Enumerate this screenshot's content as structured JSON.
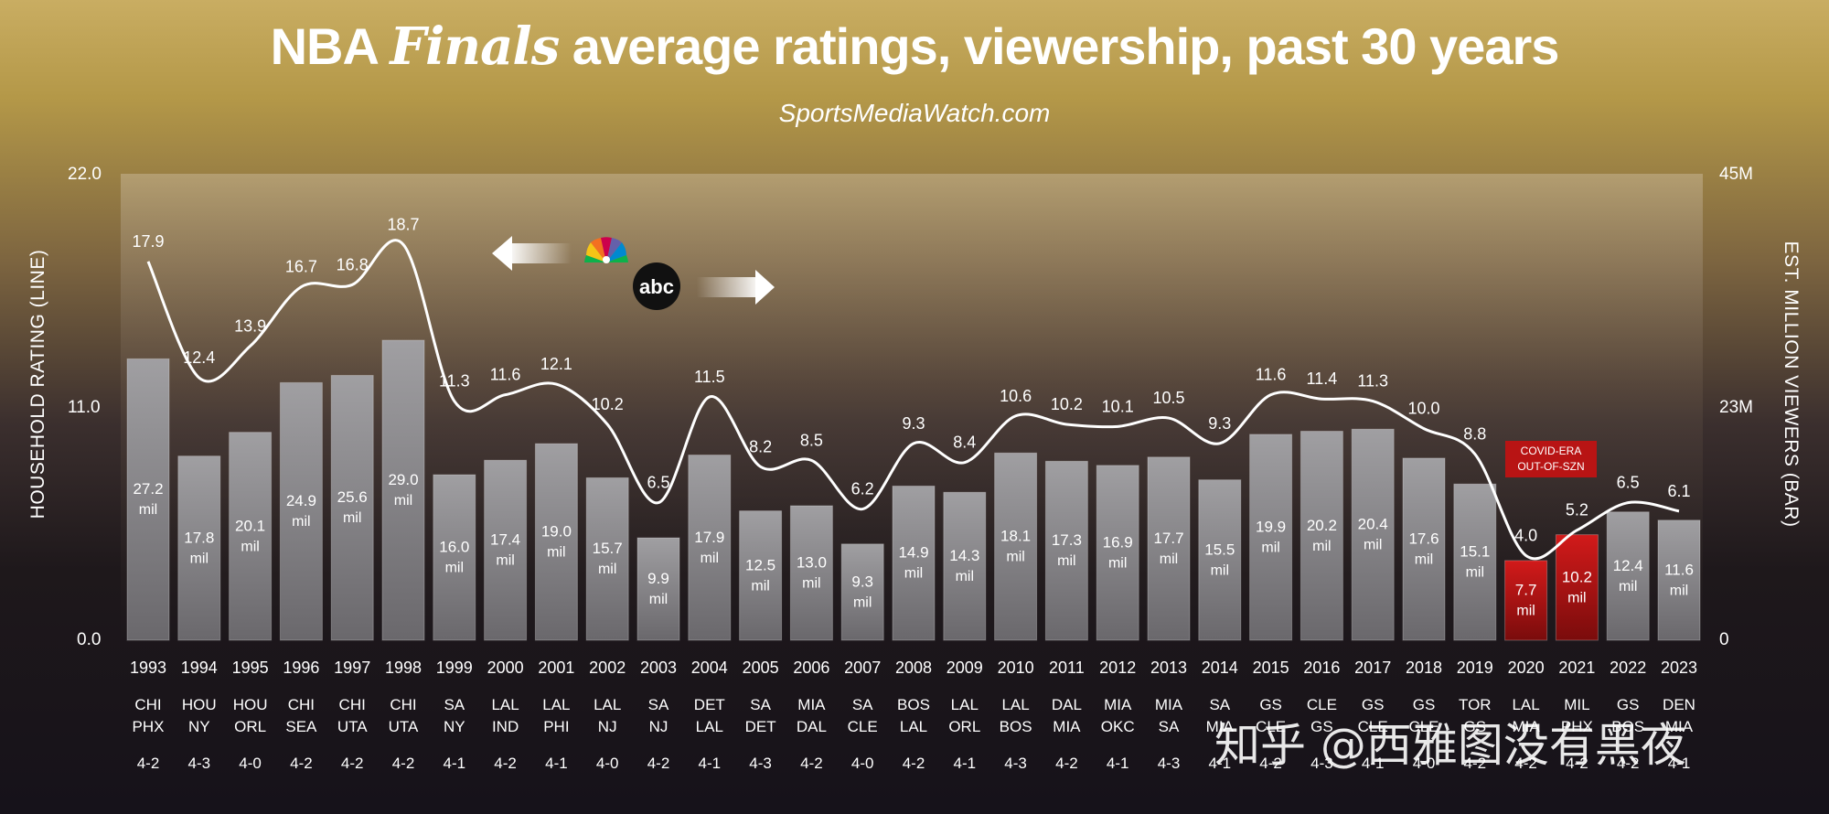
{
  "header": {
    "title_part1": "NBA",
    "title_part2": "Finals",
    "title_part3": "average ratings, viewership, past 30 years",
    "subtitle": "SportsMediaWatch.com"
  },
  "axes": {
    "left_title": "HOUSEHOLD RATING (LINE)",
    "right_title": "EST. MILLION VIEWERS (BAR)",
    "left_ticks": [
      "22.0",
      "11.0",
      "0.0"
    ],
    "right_ticks": [
      "45M",
      "23M",
      "0"
    ]
  },
  "annotations": {
    "covid_line1": "COVID-ERA",
    "covid_line2": "OUT-OF-SZN",
    "unit": "mil",
    "abc_logo_text": "abc",
    "nbc_logo": "nbc-peacock-icon"
  },
  "watermark": "知乎 @西雅图没有黑夜",
  "colors": {
    "bar_gray": "#8d8a8d",
    "bar_red": "#c41414",
    "line": "#ffffff",
    "bg_gold": "#c4a85c",
    "bg_dark": "#1a1518"
  },
  "chart_data": {
    "type": "bar",
    "title": "NBA Finals average ratings, viewership, past 30 years",
    "subtitle": "SportsMediaWatch.com",
    "ylabel_left": "HOUSEHOLD RATING (LINE)",
    "ylabel_right": "EST. MILLION VIEWERS (BAR)",
    "ylim_left": [
      0,
      22
    ],
    "ylim_right": [
      0,
      45
    ],
    "categories": [
      "1993",
      "1994",
      "1995",
      "1996",
      "1997",
      "1998",
      "1999",
      "2000",
      "2001",
      "2002",
      "2003",
      "2004",
      "2005",
      "2006",
      "2007",
      "2008",
      "2009",
      "2010",
      "2011",
      "2012",
      "2013",
      "2014",
      "2015",
      "2016",
      "2017",
      "2018",
      "2019",
      "2020",
      "2021",
      "2022",
      "2023"
    ],
    "matchups": [
      [
        "CHI",
        "PHX"
      ],
      [
        "HOU",
        "NY"
      ],
      [
        "HOU",
        "ORL"
      ],
      [
        "CHI",
        "SEA"
      ],
      [
        "CHI",
        "UTA"
      ],
      [
        "CHI",
        "UTA"
      ],
      [
        "SA",
        "NY"
      ],
      [
        "LAL",
        "IND"
      ],
      [
        "LAL",
        "PHI"
      ],
      [
        "LAL",
        "NJ"
      ],
      [
        "SA",
        "NJ"
      ],
      [
        "DET",
        "LAL"
      ],
      [
        "SA",
        "DET"
      ],
      [
        "MIA",
        "DAL"
      ],
      [
        "SA",
        "CLE"
      ],
      [
        "BOS",
        "LAL"
      ],
      [
        "LAL",
        "ORL"
      ],
      [
        "LAL",
        "BOS"
      ],
      [
        "DAL",
        "MIA"
      ],
      [
        "MIA",
        "OKC"
      ],
      [
        "MIA",
        "SA"
      ],
      [
        "SA",
        "MIA"
      ],
      [
        "GS",
        "CLE"
      ],
      [
        "CLE",
        "GS"
      ],
      [
        "GS",
        "CLE"
      ],
      [
        "GS",
        "CLE"
      ],
      [
        "TOR",
        "GS"
      ],
      [
        "LAL",
        "MIA"
      ],
      [
        "MIL",
        "PHX"
      ],
      [
        "GS",
        "BOS"
      ],
      [
        "DEN",
        "MIA"
      ]
    ],
    "series_results": [
      "4-2",
      "4-3",
      "4-0",
      "4-2",
      "4-2",
      "4-2",
      "4-1",
      "4-2",
      "4-1",
      "4-0",
      "4-2",
      "4-1",
      "4-3",
      "4-2",
      "4-0",
      "4-2",
      "4-1",
      "4-3",
      "4-2",
      "4-1",
      "4-3",
      "4-1",
      "4-2",
      "4-3",
      "4-1",
      "4-0",
      "4-2",
      "4-2",
      "4-2",
      "4-2",
      "4-1"
    ],
    "series": [
      {
        "type": "bar",
        "axis": "right",
        "values": [
          27.2,
          17.8,
          20.1,
          24.9,
          25.6,
          29.0,
          16.0,
          17.4,
          19.0,
          15.7,
          9.9,
          17.9,
          12.5,
          13.0,
          9.3,
          14.9,
          14.3,
          18.1,
          17.3,
          16.9,
          17.7,
          15.5,
          19.9,
          20.2,
          20.4,
          17.6,
          15.1,
          7.7,
          10.2,
          12.4,
          11.6
        ],
        "labels": [
          "27.2",
          "17.8",
          "20.1",
          "24.9",
          "25.6",
          "29.0",
          "16.0",
          "17.4",
          "19.0",
          "15.7",
          "9.9",
          "17.9",
          "12.5",
          "13.0",
          "9.3",
          "14.9",
          "14.3",
          "18.1",
          "17.3",
          "16.9",
          "17.7",
          "15.5",
          "19.9",
          "20.2",
          "20.4",
          "17.6",
          "15.1",
          "7.7",
          "10.2",
          "12.4",
          "11.6"
        ],
        "highlight": [
          "2020",
          "2021"
        ]
      },
      {
        "type": "line",
        "axis": "left",
        "values": [
          17.9,
          12.4,
          13.9,
          16.7,
          16.8,
          18.7,
          11.3,
          11.6,
          12.1,
          10.2,
          6.5,
          11.5,
          8.2,
          8.5,
          6.2,
          9.3,
          8.4,
          10.6,
          10.2,
          10.1,
          10.5,
          9.3,
          11.6,
          11.4,
          11.3,
          10.0,
          8.8,
          4.0,
          5.2,
          6.5,
          6.1
        ],
        "labels": [
          "17.9",
          "12.4",
          "13.9",
          "16.7",
          "16.8",
          "18.7",
          "11.3",
          "11.6",
          "12.1",
          "10.2",
          "6.5",
          "11.5",
          "8.2",
          "8.5",
          "6.2",
          "9.3",
          "8.4",
          "10.6",
          "10.2",
          "10.1",
          "10.5",
          "9.3",
          "11.6",
          "11.4",
          "11.3",
          "10.0",
          "8.8",
          "4.0",
          "5.2",
          "6.5",
          "6.1"
        ]
      }
    ]
  }
}
